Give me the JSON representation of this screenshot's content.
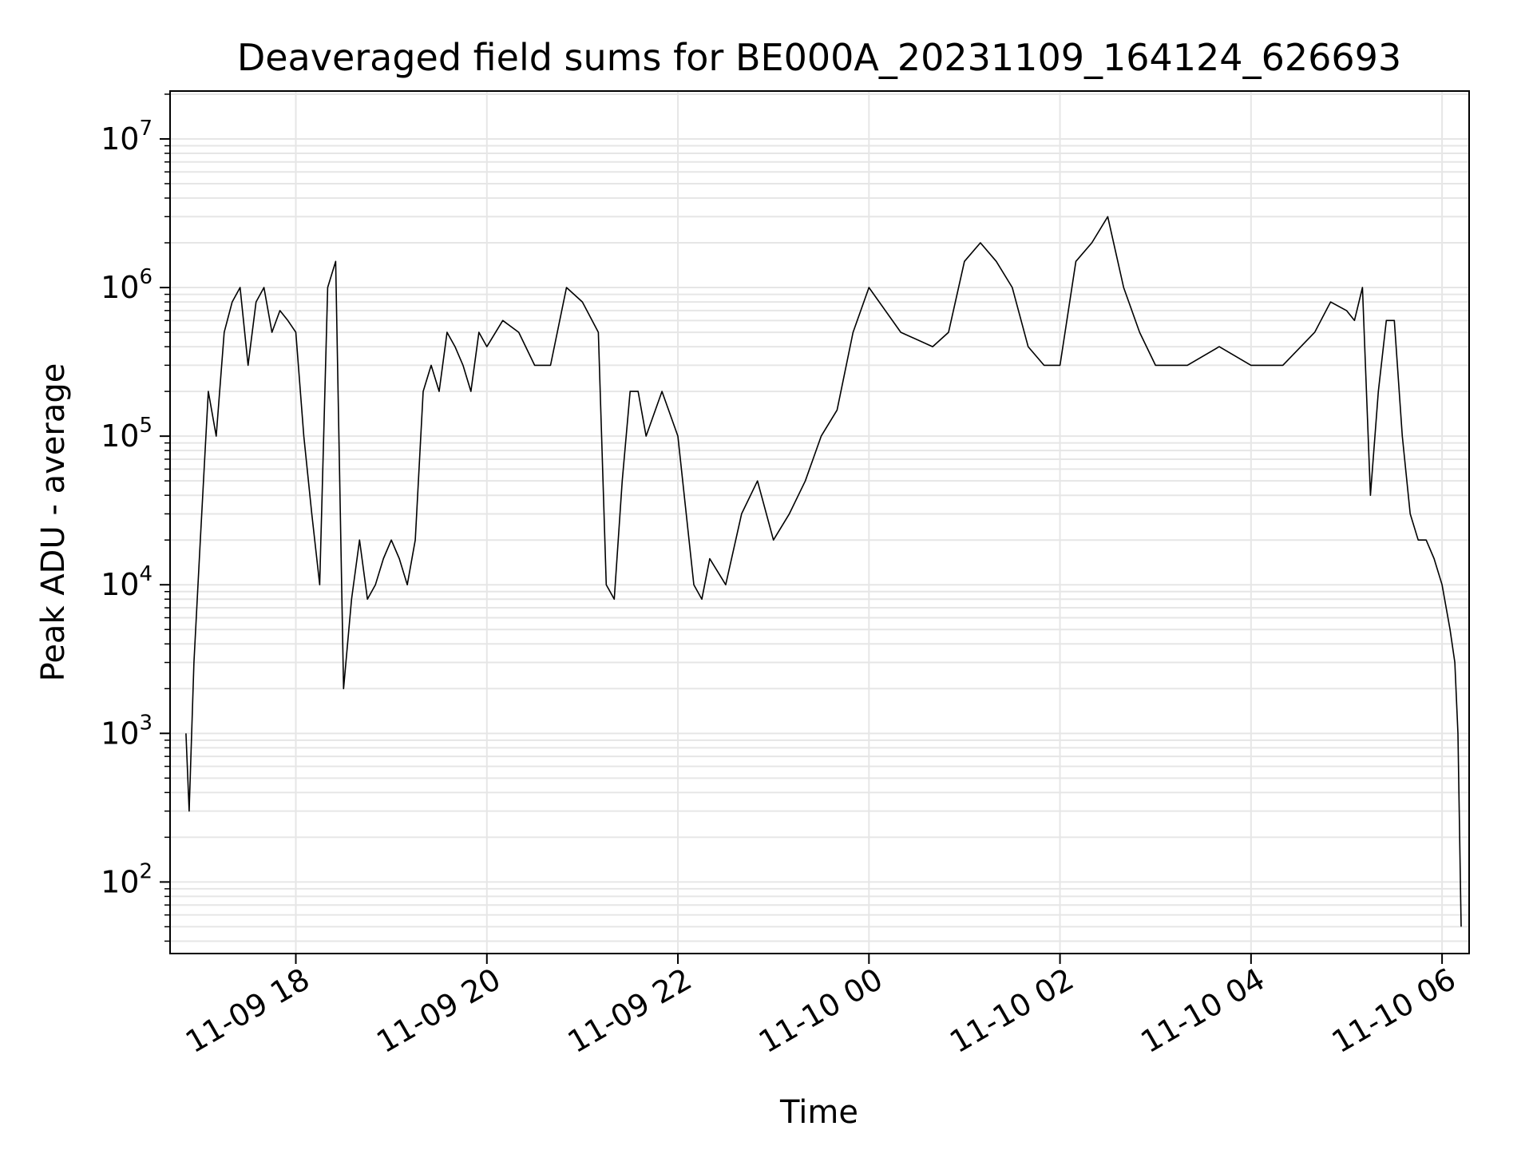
{
  "chart_data": {
    "type": "line",
    "title": "Deaveraged field sums for BE000A_20231109_164124_626693",
    "xlabel": "Time",
    "ylabel": "Peak ADU - average",
    "y_scale": "log",
    "grid": true,
    "grid_minor": true,
    "legend": "none",
    "xlim": [
      "2023-11-09 16:41",
      "2023-11-10 06:17"
    ],
    "ylim": [
      33,
      21000000
    ],
    "x_ticks": [
      {
        "value": "2023-11-09 18:00",
        "label": "11-09 18"
      },
      {
        "value": "2023-11-09 20:00",
        "label": "11-09 20"
      },
      {
        "value": "2023-11-09 22:00",
        "label": "11-09 22"
      },
      {
        "value": "2023-11-10 00:00",
        "label": "11-10 00"
      },
      {
        "value": "2023-11-10 02:00",
        "label": "11-10 02"
      },
      {
        "value": "2023-11-10 04:00",
        "label": "11-10 04"
      },
      {
        "value": "2023-11-10 06:00",
        "label": "11-10 06"
      }
    ],
    "y_ticks": [
      {
        "value": 100,
        "base": "10",
        "exp": "2"
      },
      {
        "value": 1000,
        "base": "10",
        "exp": "3"
      },
      {
        "value": 10000,
        "base": "10",
        "exp": "4"
      },
      {
        "value": 100000,
        "base": "10",
        "exp": "5"
      },
      {
        "value": 1000000,
        "base": "10",
        "exp": "6"
      },
      {
        "value": 10000000,
        "base": "10",
        "exp": "7"
      }
    ],
    "series": [
      {
        "color": "#000000",
        "x": [
          "2023-11-09 16:51",
          "2023-11-09 16:53",
          "2023-11-09 16:56",
          "2023-11-09 17:00",
          "2023-11-09 17:05",
          "2023-11-09 17:10",
          "2023-11-09 17:15",
          "2023-11-09 17:20",
          "2023-11-09 17:25",
          "2023-11-09 17:30",
          "2023-11-09 17:35",
          "2023-11-09 17:40",
          "2023-11-09 17:45",
          "2023-11-09 17:50",
          "2023-11-09 17:55",
          "2023-11-09 18:00",
          "2023-11-09 18:05",
          "2023-11-09 18:10",
          "2023-11-09 18:15",
          "2023-11-09 18:20",
          "2023-11-09 18:25",
          "2023-11-09 18:30",
          "2023-11-09 18:35",
          "2023-11-09 18:40",
          "2023-11-09 18:45",
          "2023-11-09 18:50",
          "2023-11-09 18:55",
          "2023-11-09 19:00",
          "2023-11-09 19:05",
          "2023-11-09 19:10",
          "2023-11-09 19:15",
          "2023-11-09 19:20",
          "2023-11-09 19:25",
          "2023-11-09 19:30",
          "2023-11-09 19:35",
          "2023-11-09 19:40",
          "2023-11-09 19:45",
          "2023-11-09 19:50",
          "2023-11-09 19:55",
          "2023-11-09 20:00",
          "2023-11-09 20:10",
          "2023-11-09 20:20",
          "2023-11-09 20:30",
          "2023-11-09 20:40",
          "2023-11-09 20:50",
          "2023-11-09 21:00",
          "2023-11-09 21:10",
          "2023-11-09 21:15",
          "2023-11-09 21:20",
          "2023-11-09 21:25",
          "2023-11-09 21:30",
          "2023-11-09 21:35",
          "2023-11-09 21:40",
          "2023-11-09 21:50",
          "2023-11-09 22:00",
          "2023-11-09 22:10",
          "2023-11-09 22:15",
          "2023-11-09 22:20",
          "2023-11-09 22:30",
          "2023-11-09 22:40",
          "2023-11-09 22:50",
          "2023-11-09 23:00",
          "2023-11-09 23:10",
          "2023-11-09 23:20",
          "2023-11-09 23:30",
          "2023-11-09 23:40",
          "2023-11-09 23:50",
          "2023-11-10 00:00",
          "2023-11-10 00:20",
          "2023-11-10 00:40",
          "2023-11-10 00:50",
          "2023-11-10 01:00",
          "2023-11-10 01:10",
          "2023-11-10 01:20",
          "2023-11-10 01:30",
          "2023-11-10 01:40",
          "2023-11-10 01:50",
          "2023-11-10 02:00",
          "2023-11-10 02:10",
          "2023-11-10 02:20",
          "2023-11-10 02:30",
          "2023-11-10 02:40",
          "2023-11-10 02:50",
          "2023-11-10 03:00",
          "2023-11-10 03:20",
          "2023-11-10 03:40",
          "2023-11-10 04:00",
          "2023-11-10 04:20",
          "2023-11-10 04:40",
          "2023-11-10 04:50",
          "2023-11-10 05:00",
          "2023-11-10 05:05",
          "2023-11-10 05:10",
          "2023-11-10 05:15",
          "2023-11-10 05:20",
          "2023-11-10 05:25",
          "2023-11-10 05:30",
          "2023-11-10 05:35",
          "2023-11-10 05:40",
          "2023-11-10 05:45",
          "2023-11-10 05:50",
          "2023-11-10 05:55",
          "2023-11-10 06:00",
          "2023-11-10 06:05",
          "2023-11-10 06:08",
          "2023-11-10 06:10",
          "2023-11-10 06:12"
        ],
        "y": [
          1000,
          300,
          3000,
          20000,
          200000,
          100000,
          500000,
          800000,
          1000000,
          300000,
          800000,
          1000000,
          500000,
          700000,
          600000,
          500000,
          100000,
          30000,
          10000,
          1000000,
          1500000,
          2000,
          8000,
          20000,
          8000,
          10000,
          15000,
          20000,
          15000,
          10000,
          20000,
          200000,
          300000,
          200000,
          500000,
          400000,
          300000,
          200000,
          500000,
          400000,
          600000,
          500000,
          300000,
          300000,
          1000000,
          800000,
          500000,
          10000,
          8000,
          50000,
          200000,
          200000,
          100000,
          200000,
          100000,
          10000,
          8000,
          15000,
          10000,
          30000,
          50000,
          20000,
          30000,
          50000,
          100000,
          150000,
          500000,
          1000000,
          500000,
          400000,
          500000,
          1500000,
          2000000,
          1500000,
          1000000,
          400000,
          300000,
          300000,
          1500000,
          2000000,
          3000000,
          1000000,
          500000,
          300000,
          300000,
          400000,
          300000,
          300000,
          500000,
          800000,
          700000,
          600000,
          1000000,
          40000,
          200000,
          600000,
          600000,
          100000,
          30000,
          20000,
          20000,
          15000,
          10000,
          5000,
          3000,
          1000,
          50
        ]
      }
    ]
  }
}
